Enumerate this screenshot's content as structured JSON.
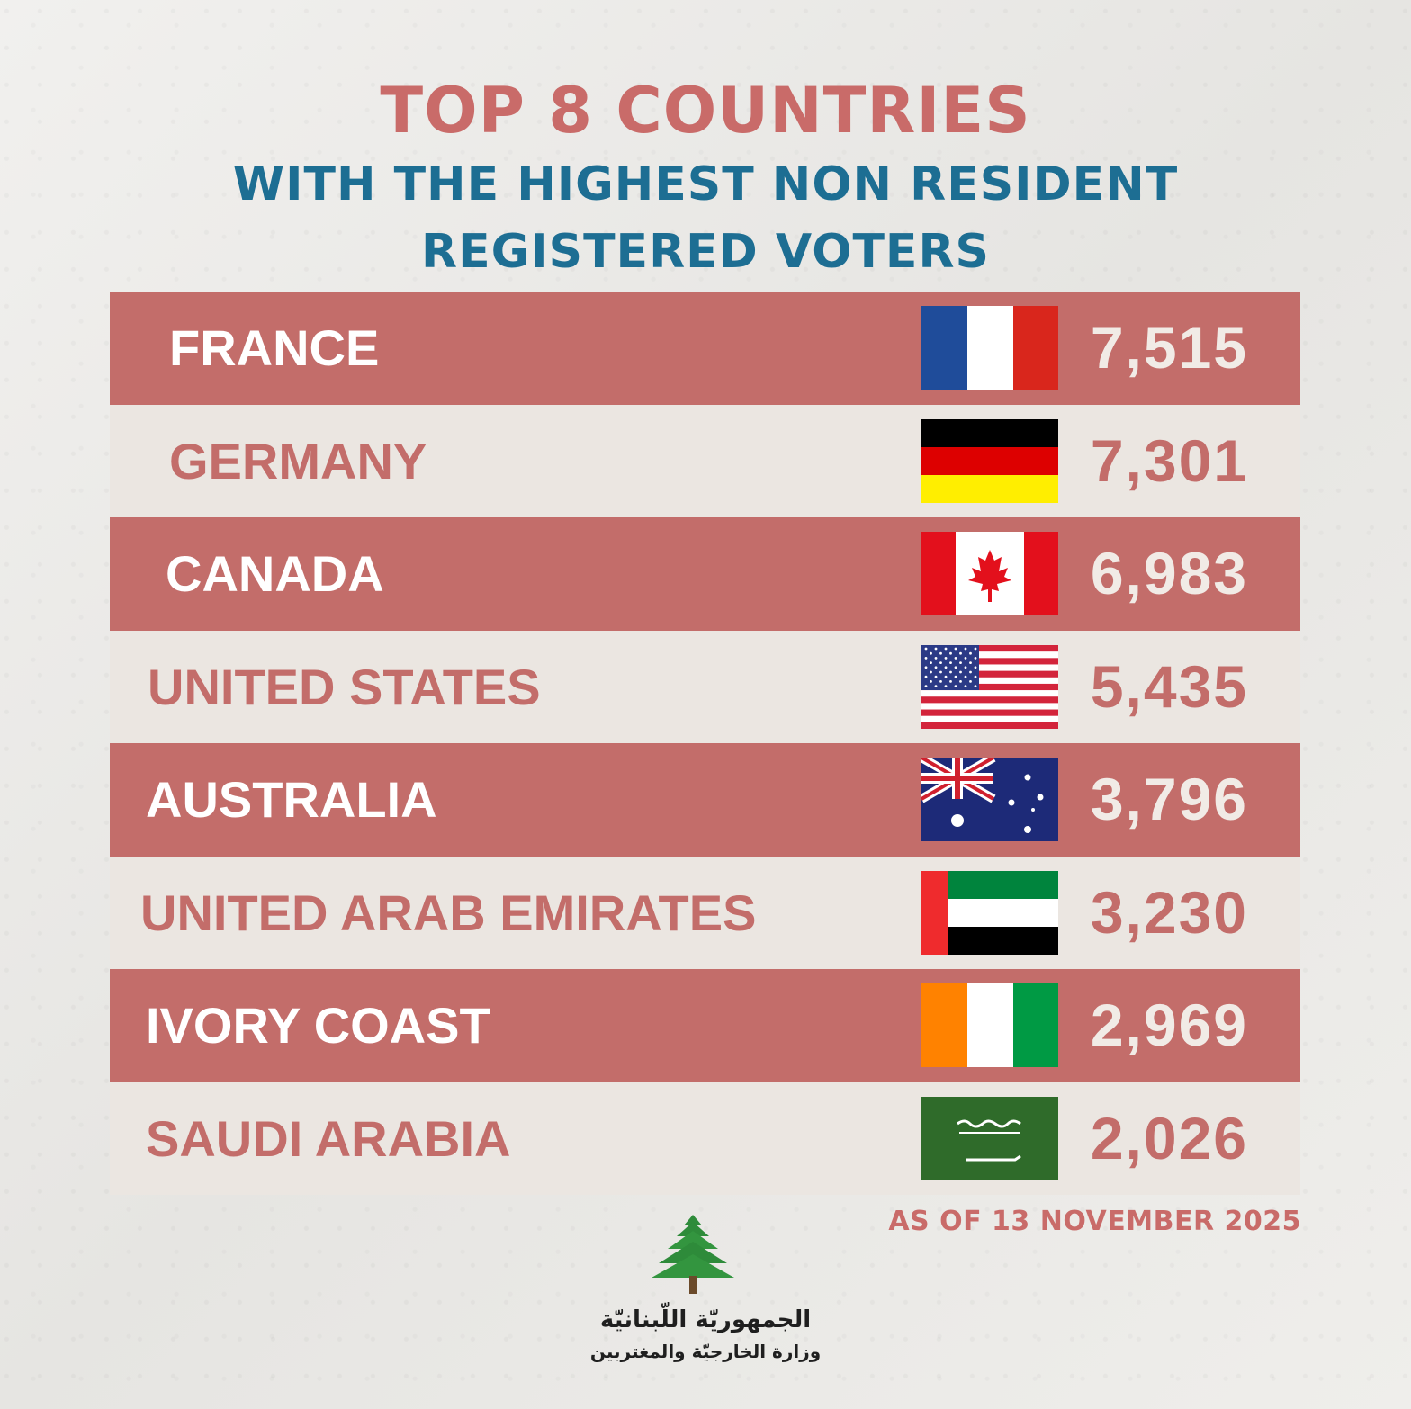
{
  "title": "TOP 8 COUNTRIES",
  "subtitle_line1": "WITH THE HIGHEST NON RESIDENT",
  "subtitle_line2": "REGISTERED VOTERS",
  "footnote": "AS OF 13 NOVEMBER 2025",
  "logo": {
    "icon": "cedar-tree-icon",
    "line1": "الجمهوريّة اللّبنانيّة",
    "line2": "وزارة الخارجيّة والمغتربين"
  },
  "colors": {
    "row_dark": "#c36d6a",
    "row_light": "#ebe6e1",
    "title": "#c96b69",
    "subtitle": "#1d6e93"
  },
  "chart_data": {
    "type": "table",
    "columns": [
      "country",
      "flag",
      "registered_voters"
    ],
    "rows": [
      {
        "country": "FRANCE",
        "flag": "france-flag-icon",
        "value": 7515,
        "label": "7,515"
      },
      {
        "country": "GERMANY",
        "flag": "germany-flag-icon",
        "value": 7301,
        "label": "7,301"
      },
      {
        "country": "CANADA",
        "flag": "canada-flag-icon",
        "value": 6983,
        "label": "6,983"
      },
      {
        "country": "UNITED STATES",
        "flag": "united-states-flag-icon",
        "value": 5435,
        "label": "5,435"
      },
      {
        "country": "AUSTRALIA",
        "flag": "australia-flag-icon",
        "value": 3796,
        "label": "3,796"
      },
      {
        "country": "UNITED ARAB EMIRATES",
        "flag": "uae-flag-icon",
        "value": 3230,
        "label": "3,230"
      },
      {
        "country": "IVORY COAST",
        "flag": "ivory-coast-flag-icon",
        "value": 2969,
        "label": "2,969"
      },
      {
        "country": "SAUDI ARABIA",
        "flag": "saudi-arabia-flag-icon",
        "value": 2026,
        "label": "2,026"
      }
    ]
  }
}
